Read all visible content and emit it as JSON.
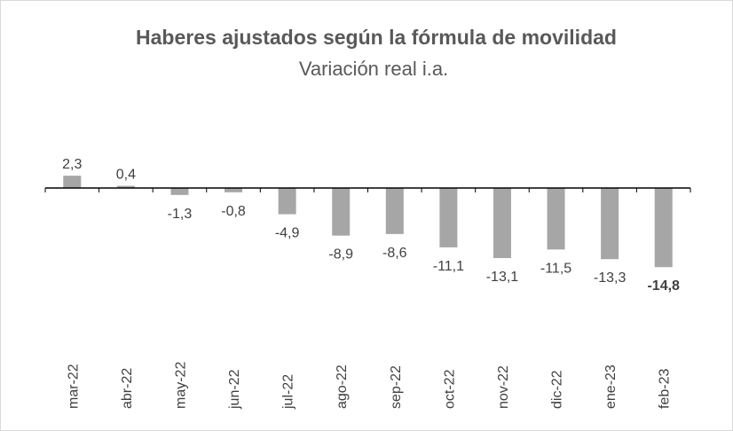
{
  "chart_data": {
    "type": "bar",
    "title": "Haberes ajustados según la fórmula de movilidad",
    "subtitle": "Variación real i.a.",
    "categories": [
      "mar-22",
      "abr-22",
      "may-22",
      "jun-22",
      "jul-22",
      "ago-22",
      "sep-22",
      "oct-22",
      "nov-22",
      "dic-22",
      "ene-23",
      "feb-23"
    ],
    "values": [
      2.3,
      0.4,
      -1.3,
      -0.8,
      -4.9,
      -8.9,
      -8.6,
      -11.1,
      -13.1,
      -11.5,
      -13.3,
      -14.8
    ],
    "data_labels": [
      "2,3",
      "0,4",
      "-1,3",
      "-0,8",
      "-4,9",
      "-8,9",
      "-8,6",
      "-11,1",
      "-13,1",
      "-11,5",
      "-13,3",
      "-14,8"
    ],
    "bold_label_index": 11,
    "ylim": [
      -14.8,
      2.3
    ],
    "grid": false,
    "legend": "none",
    "bar_color": "#a6a6a6",
    "axis_color": "#000000",
    "xlabel": "",
    "ylabel": ""
  }
}
